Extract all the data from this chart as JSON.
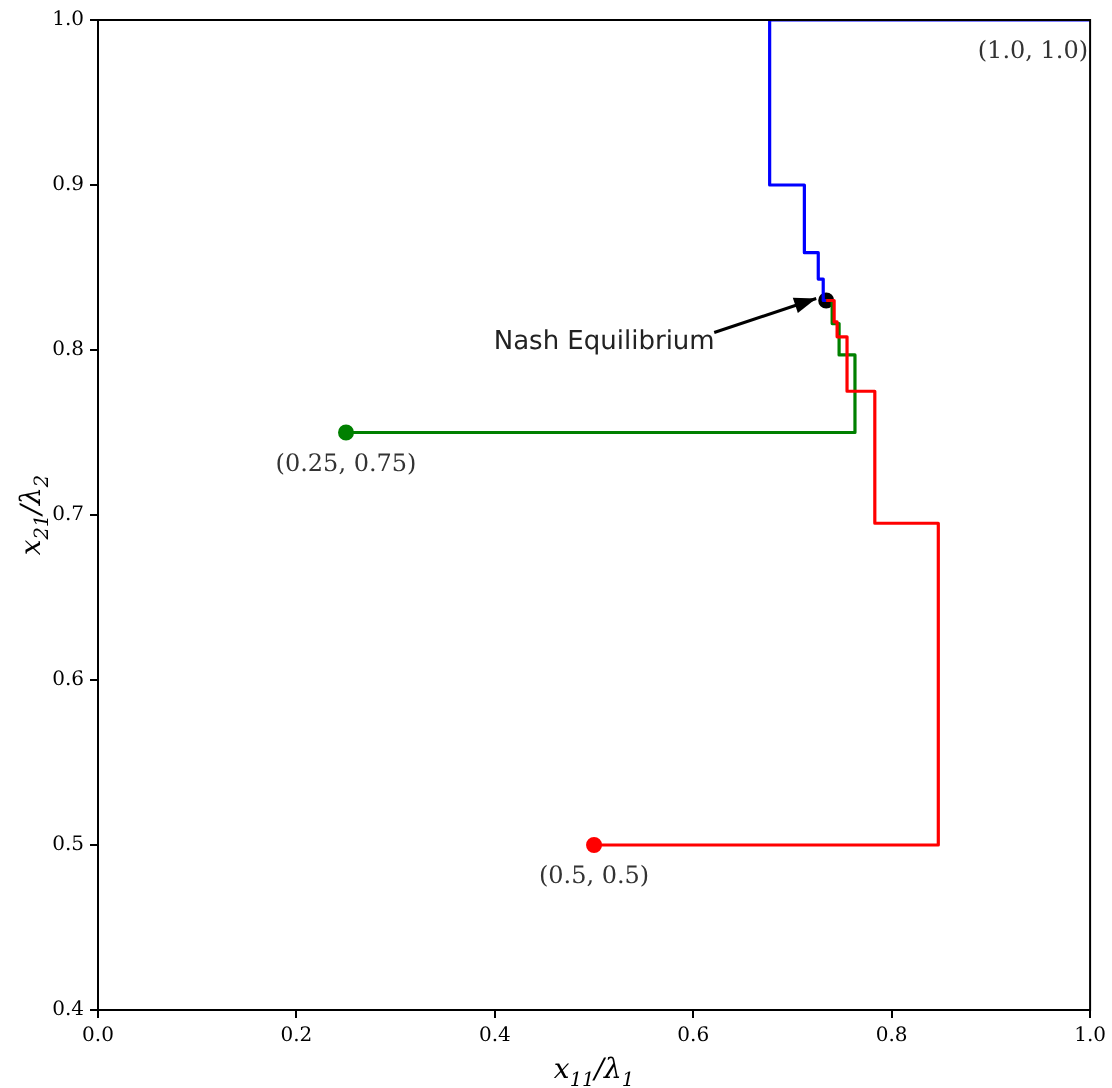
{
  "chart_data": {
    "type": "line",
    "xlabel": "x$_{11}$/λ$_{1}$",
    "ylabel": "x$_{21}$/λ$_{2}$",
    "series": [
      {
        "color": "#ff0000",
        "marker": "none",
        "x": [
          0.5,
          0.847,
          0.847,
          0.783,
          0.783,
          0.755,
          0.755,
          0.745,
          0.745,
          0.742,
          0.742,
          0.734
        ],
        "values": [
          0.5,
          0.5,
          0.695,
          0.695,
          0.775,
          0.775,
          0.808,
          0.808,
          0.817,
          0.817,
          0.83,
          0.83
        ]
      },
      {
        "color": "#008000",
        "marker": "none",
        "x": [
          0.25,
          0.763,
          0.763,
          0.747,
          0.747,
          0.74,
          0.74,
          0.734
        ],
        "values": [
          0.75,
          0.75,
          0.797,
          0.797,
          0.816,
          0.816,
          0.83,
          0.83
        ]
      },
      {
        "color": "#0000ff",
        "marker": "none",
        "x": [
          1.0,
          0.677,
          0.677,
          0.712,
          0.712,
          0.726,
          0.726,
          0.731,
          0.731,
          0.734
        ],
        "values": [
          1.0,
          1.0,
          0.9,
          0.9,
          0.859,
          0.859,
          0.843,
          0.843,
          0.83,
          0.83
        ]
      },
      {
        "type": "scatter",
        "color": "#ff0000",
        "x": [
          0.5
        ],
        "values": [
          0.5
        ]
      },
      {
        "type": "scatter",
        "color": "#008000",
        "x": [
          0.25
        ],
        "values": [
          0.75
        ]
      },
      {
        "type": "scatter",
        "color": "#000000",
        "x": [
          0.734
        ],
        "values": [
          0.83
        ]
      }
    ],
    "marker": "circle",
    "xlim": [
      0.0,
      1.0
    ],
    "ylim": [
      0.4,
      1.0
    ],
    "xticks": [
      {
        "value": 0.0,
        "label": "0.0"
      },
      {
        "value": 0.2,
        "label": "0.2"
      },
      {
        "value": 0.4,
        "label": "0.4"
      },
      {
        "value": 0.6,
        "label": "0.6"
      },
      {
        "value": 0.8,
        "label": "0.8"
      },
      {
        "value": 1.0,
        "label": "1.0"
      }
    ],
    "yticks": [
      {
        "value": 0.4,
        "label": "0.4"
      },
      {
        "value": 0.5,
        "label": "0.5"
      },
      {
        "value": 0.6,
        "label": "0.6"
      },
      {
        "value": 0.7,
        "label": "0.7"
      },
      {
        "value": 0.8,
        "label": "0.8"
      },
      {
        "value": 0.9,
        "label": "0.9"
      },
      {
        "value": 1.0,
        "label": "1.0"
      }
    ],
    "annotations": [
      {
        "text": "(0.5, 0.5)",
        "x": 0.5,
        "y": 0.5
      },
      {
        "text": "(0.25, 0.75)",
        "x": 0.25,
        "y": 0.75
      },
      {
        "text": "(1.0, 1.0)",
        "x": 1.0,
        "y": 1.0
      },
      {
        "text": "Nash Equilibrium",
        "x": 0.734,
        "y": 0.83
      }
    ],
    "grid": false,
    "legend": false
  }
}
